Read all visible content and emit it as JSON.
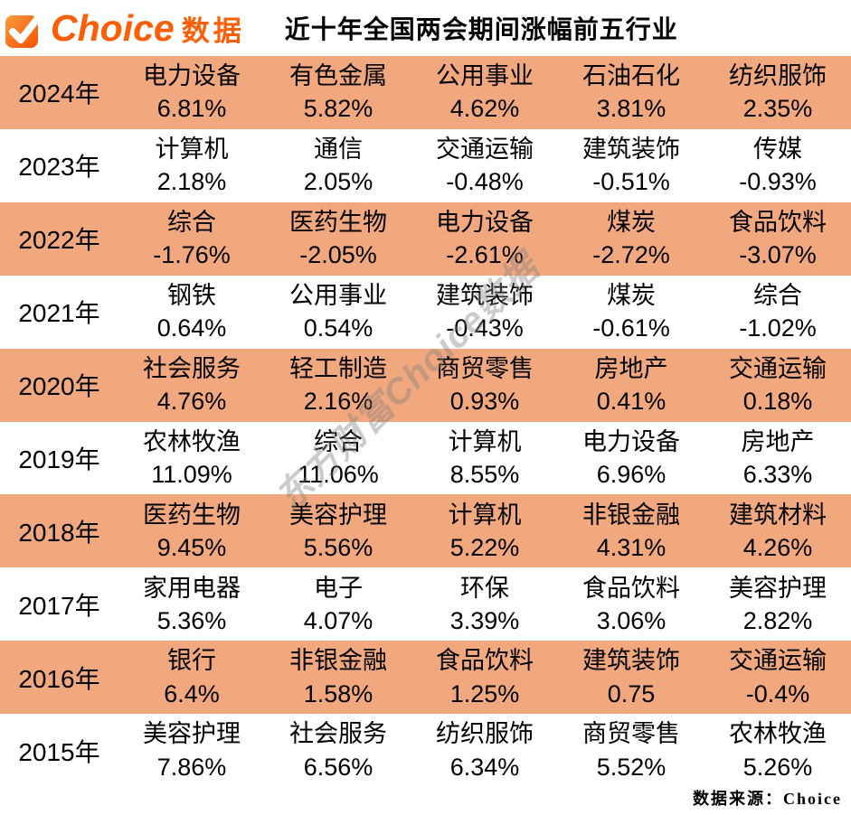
{
  "logo": {
    "brand": "Choice",
    "suffix": "数据",
    "icon": "checkmark-icon"
  },
  "title": "近十年全国两会期间涨幅前五行业",
  "watermark": "东方财富Choice数据",
  "footer": {
    "source": "数据来源：Choice"
  },
  "colors": {
    "highlight_row": "#f2a87e",
    "brand_orange": "#fb5e04",
    "text": "#000000",
    "watermark_gray": "#808080"
  },
  "chart_data": {
    "type": "table",
    "title": "近十年全国两会期间涨幅前五行业",
    "source": "数据来源：Choice",
    "rows": [
      {
        "year": "2024年",
        "highlight": true,
        "top5": [
          [
            "电力设备",
            "6.81%"
          ],
          [
            "有色金属",
            "5.82%"
          ],
          [
            "公用事业",
            "4.62%"
          ],
          [
            "石油石化",
            "3.81%"
          ],
          [
            "纺织服饰",
            "2.35%"
          ]
        ]
      },
      {
        "year": "2023年",
        "highlight": false,
        "top5": [
          [
            "计算机",
            "2.18%"
          ],
          [
            "通信",
            "2.05%"
          ],
          [
            "交通运输",
            "-0.48%"
          ],
          [
            "建筑装饰",
            "-0.51%"
          ],
          [
            "传媒",
            "-0.93%"
          ]
        ]
      },
      {
        "year": "2022年",
        "highlight": true,
        "top5": [
          [
            "综合",
            "-1.76%"
          ],
          [
            "医药生物",
            "-2.05%"
          ],
          [
            "电力设备",
            "-2.61%"
          ],
          [
            "煤炭",
            "-2.72%"
          ],
          [
            "食品饮料",
            "-3.07%"
          ]
        ]
      },
      {
        "year": "2021年",
        "highlight": false,
        "top5": [
          [
            "钢铁",
            "0.64%"
          ],
          [
            "公用事业",
            "0.54%"
          ],
          [
            "建筑装饰",
            "-0.43%"
          ],
          [
            "煤炭",
            "-0.61%"
          ],
          [
            "综合",
            "-1.02%"
          ]
        ]
      },
      {
        "year": "2020年",
        "highlight": true,
        "top5": [
          [
            "社会服务",
            "4.76%"
          ],
          [
            "轻工制造",
            "2.16%"
          ],
          [
            "商贸零售",
            "0.93%"
          ],
          [
            "房地产",
            "0.41%"
          ],
          [
            "交通运输",
            "0.18%"
          ]
        ]
      },
      {
        "year": "2019年",
        "highlight": false,
        "top5": [
          [
            "农林牧渔",
            "11.09%"
          ],
          [
            "综合",
            "11.06%"
          ],
          [
            "计算机",
            "8.55%"
          ],
          [
            "电力设备",
            "6.96%"
          ],
          [
            "房地产",
            "6.33%"
          ]
        ]
      },
      {
        "year": "2018年",
        "highlight": true,
        "top5": [
          [
            "医药生物",
            "9.45%"
          ],
          [
            "美容护理",
            "5.56%"
          ],
          [
            "计算机",
            "5.22%"
          ],
          [
            "非银金融",
            "4.31%"
          ],
          [
            "建筑材料",
            "4.26%"
          ]
        ]
      },
      {
        "year": "2017年",
        "highlight": false,
        "top5": [
          [
            "家用电器",
            "5.36%"
          ],
          [
            "电子",
            "4.07%"
          ],
          [
            "环保",
            "3.39%"
          ],
          [
            "食品饮料",
            "3.06%"
          ],
          [
            "美容护理",
            "2.82%"
          ]
        ]
      },
      {
        "year": "2016年",
        "highlight": true,
        "top5": [
          [
            "银行",
            "6.4%"
          ],
          [
            "非银金融",
            "1.58%"
          ],
          [
            "食品饮料",
            "1.25%"
          ],
          [
            "建筑装饰",
            "0.75"
          ],
          [
            "交通运输",
            "-0.4%"
          ]
        ]
      },
      {
        "year": "2015年",
        "highlight": false,
        "top5": [
          [
            "美容护理",
            "7.86%"
          ],
          [
            "社会服务",
            "6.56%"
          ],
          [
            "纺织服饰",
            "6.34%"
          ],
          [
            "商贸零售",
            "5.52%"
          ],
          [
            "农林牧渔",
            "5.26%"
          ]
        ]
      }
    ]
  }
}
